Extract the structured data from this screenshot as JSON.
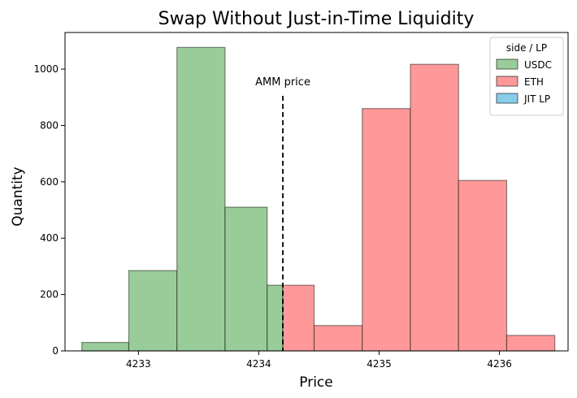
{
  "chart_data": {
    "type": "bar",
    "title": "Swap Without Just-in-Time Liquidity",
    "xlabel": "Price",
    "ylabel": "Quantity",
    "xlim": [
      4232.39,
      4236.57
    ],
    "ylim": [
      0,
      1130
    ],
    "x_ticks": [
      4233,
      4234,
      4235,
      4236
    ],
    "y_ticks": [
      0,
      200,
      400,
      600,
      800,
      1000
    ],
    "legend": {
      "title": "side / LP",
      "placement": "top-right",
      "entries": [
        {
          "label": "USDC",
          "color": "#99cc99"
        },
        {
          "label": "ETH",
          "color": "#ff9999"
        },
        {
          "label": "JIT LP",
          "color": "#87ceeb"
        }
      ]
    },
    "series": [
      {
        "name": "USDC",
        "color": "#99cc99",
        "bins": [
          {
            "x0": 4232.53,
            "x1": 4232.92,
            "value": 30
          },
          {
            "x0": 4232.92,
            "x1": 4233.32,
            "value": 285
          },
          {
            "x0": 4233.32,
            "x1": 4233.72,
            "value": 1077
          },
          {
            "x0": 4233.72,
            "x1": 4234.07,
            "value": 510
          },
          {
            "x0": 4234.07,
            "x1": 4234.2,
            "value": 233
          }
        ]
      },
      {
        "name": "ETH",
        "color": "#ff9999",
        "bins": [
          {
            "x0": 4234.2,
            "x1": 4234.46,
            "value": 233
          },
          {
            "x0": 4234.46,
            "x1": 4234.86,
            "value": 90
          },
          {
            "x0": 4234.86,
            "x1": 4235.26,
            "value": 860
          },
          {
            "x0": 4235.26,
            "x1": 4235.66,
            "value": 1017
          },
          {
            "x0": 4235.66,
            "x1": 4236.06,
            "value": 605
          },
          {
            "x0": 4236.06,
            "x1": 4236.46,
            "value": 55
          }
        ]
      }
    ],
    "annotations": [
      {
        "type": "vline",
        "x": 4234.2,
        "y_top": 905,
        "style": "dashed",
        "label": "AMM price"
      }
    ]
  }
}
